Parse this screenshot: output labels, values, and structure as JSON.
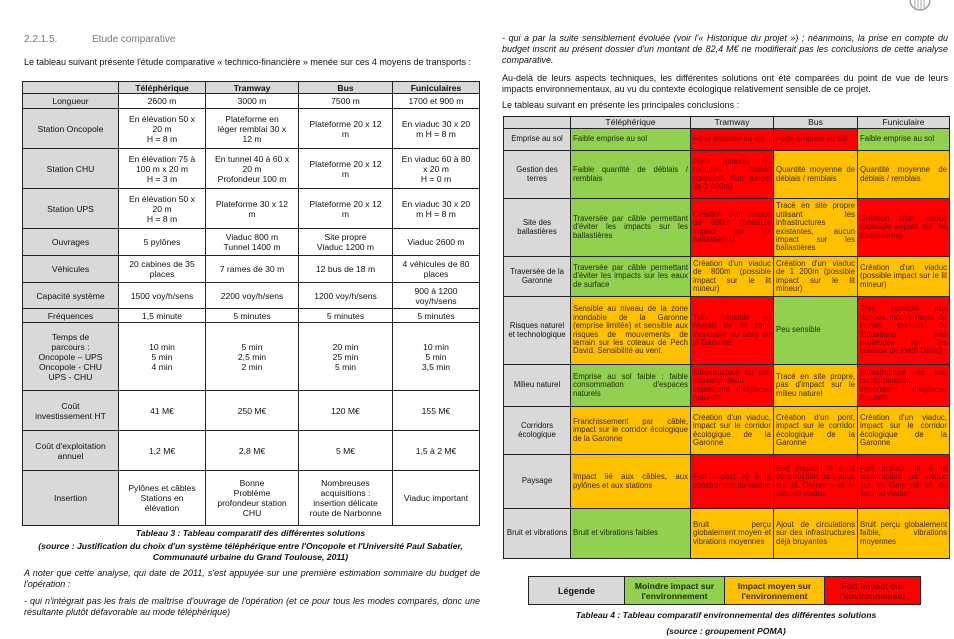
{
  "header": {
    "number": "2.2.1.5.",
    "title": "Etude comparative"
  },
  "left": {
    "intro": "Le tableau suivant présente l'étude comparative « technico-financière » menée sur ces 4 moyens de transports :",
    "caption": "Tableau 3 : Tableau comparatif des différentes solutions",
    "source": "(source : Justification du choix d'un système téléphérique entre l'Oncopole et l'Université Paul Sabatier, Communauté urbaine du Grand Toulouse, 2011)",
    "note": "A noter que cette analyse, qui date de 2011, s'est appuyée sur une première estimation sommaire du budget de l'opération :",
    "bullet": "- qui n'intégrait pas les frais de maîtrise d'ouvrage de l'opération (et ce pour tous les modes comparés, donc une résultante plutôt défavorable au mode téléphérique)"
  },
  "table3": {
    "header": [
      "",
      "Téléphérique",
      "Tramway",
      "Bus",
      "Funiculaires"
    ],
    "rows": [
      [
        [
          "Longueur"
        ],
        [
          "2600 m"
        ],
        [
          "3000 m"
        ],
        [
          "7500 m"
        ],
        [
          "1700 et 900 m"
        ]
      ],
      [
        [
          "Station Oncopole"
        ],
        [
          "En élévation 50 x",
          "20 m",
          "H = 8 m"
        ],
        [
          "Plateforme en",
          "léger remblai 30 x",
          "12 m"
        ],
        [
          "Plateforme 20 x 12",
          "m"
        ],
        [
          "En viaduc 30 x 20",
          "m H = 8 m"
        ]
      ],
      [
        [
          "Station CHU"
        ],
        [
          "En élévation 75 à",
          "100 m x 20 m",
          "H = 3 m"
        ],
        [
          "En tunnel 40 à 60 x",
          "20 m",
          "Profondeur 100 m"
        ],
        [
          "Plateforme 20 x 12",
          "m"
        ],
        [
          "En viaduc 60 à 80",
          "x 20 m",
          "H = 0 m"
        ]
      ],
      [
        [
          "Station UPS"
        ],
        [
          "En élévation 50 x",
          "20 m",
          "H = 8 m"
        ],
        [
          "Plateforme 30 x 12",
          "m"
        ],
        [
          "Plateforme 20 x 12",
          "m"
        ],
        [
          "En viaduc 30 x 20",
          "m H = 8 m"
        ]
      ],
      [
        [
          "Ouvrages"
        ],
        [
          "5 pylônes"
        ],
        [
          "Viaduc 800 m",
          "Tunnel 1400 m"
        ],
        [
          "Site propre",
          "Viaduc 1200 m"
        ],
        [
          "Viaduc 2600 m"
        ]
      ],
      [
        [
          "Véhicules"
        ],
        [
          "20 cabines de 35",
          "places"
        ],
        [
          "7 rames de 30 m"
        ],
        [
          "12 bus de 18 m"
        ],
        [
          "4 véhicules de 80",
          "places"
        ]
      ],
      [
        [
          "Capacité système"
        ],
        [
          "1500 voy/h/sens"
        ],
        [
          "2200 voy/h/sens"
        ],
        [
          "1200 voy/h/sens"
        ],
        [
          "900 à 1200",
          "voy/h/sens"
        ]
      ],
      [
        [
          "Fréquences"
        ],
        [
          "1,5 minute"
        ],
        [
          "5 minutes"
        ],
        [
          "5 minutes"
        ],
        [
          "5 minutes"
        ]
      ],
      [
        [
          "Temps de",
          "parcours :",
          "Oncopole – UPS",
          "Oncopole - CHU",
          "UPS - CHU"
        ],
        [
          "10 min",
          "5 min",
          "4 min"
        ],
        [
          "5 min",
          "2,5 min",
          "2 min"
        ],
        [
          "20 min",
          "25 min",
          "5 min"
        ],
        [
          "10 min",
          "5 min",
          "3,5 min"
        ]
      ],
      [
        [
          "Coût",
          "investissement HT"
        ],
        [
          "41 M€"
        ],
        [
          "250 M€"
        ],
        [
          "120 M€"
        ],
        [
          "155 M€"
        ]
      ],
      [
        [
          "Coût d'exploitation",
          "annuel"
        ],
        [
          "1,2 M€"
        ],
        [
          "2,8 M€"
        ],
        [
          "5 M€"
        ],
        [
          "1,5 à 2 M€"
        ]
      ],
      [
        [
          "Insertion"
        ],
        [
          "Pylônes et câbles",
          "Stations en",
          "élévation"
        ],
        [
          "Bonne",
          "Problème",
          "profondeur station",
          "CHU"
        ],
        [
          "Nombreuses",
          "acquisitions :",
          "insertion délicate",
          "route de Narbonne"
        ],
        [
          "Viaduc important"
        ]
      ]
    ]
  },
  "right": {
    "bullet": "- qui a par la suite sensiblement évoluée (voir l'« Historique du projet ») ; néanmoins, la prise en compte du budget inscrit au présent dossier d'un montant de 82,4 M€ ne modifierait pas les conclusions de cette analyse comparative.",
    "para": "Au-delà de leurs aspects techniques, les différentes solutions ont été comparées du point de vue de leurs impacts environnementaux, au vu du contexte écologique relativement sensible de ce projet.",
    "intro": "Le tableau suivant en présente les principales conclusions :",
    "caption": "Tableau 4 : Tableau comparatif environnemental des différentes solutions",
    "source": "(source : groupement POMA)"
  },
  "table4": {
    "header": [
      "",
      "Téléphérique",
      "Tramway",
      "Bus",
      "Funiculaire"
    ],
    "rows": [
      {
        "label": "Emprise au sol",
        "cells": [
          {
            "text": "Faible emprise au sol",
            "color": "#92d050",
            "text_color": "#1b2e05"
          },
          {
            "text": "Forte emprise au sol",
            "color": "#ff0000",
            "text_color": "#7a0000"
          },
          {
            "text": "Forte emprise au sol",
            "color": "#ff0000",
            "text_color": "#7a0000"
          },
          {
            "text": "Faible emprise au sol",
            "color": "#92d050",
            "text_color": "#1b2e05"
          }
        ]
      },
      {
        "label": "Gestion des terres",
        "cells": [
          {
            "text": "Faible quantité de déblais / remblais",
            "color": "#92d050",
            "text_color": "#1b2e05"
          },
          {
            "text": "Forte quantité de remblais / déblais (création d'un tunnel de 1 400m)",
            "color": "#ff0000",
            "text_color": "#7a0000"
          },
          {
            "text": "Quantité moyenne de déblais / remblais",
            "color": "#ffc000",
            "text_color": "#3d2a00"
          },
          {
            "text": "Quantité moyenne de déblais / remblais",
            "color": "#ffc000",
            "text_color": "#3d2a00"
          }
        ]
      },
      {
        "label": "Site des ballastières",
        "cells": [
          {
            "text": "Traversée par câble permettant d'éviter les impacts sur les ballastières",
            "color": "#92d050",
            "text_color": "#1b2e05"
          },
          {
            "text": "Création d'un viaduc de 800m (possible impact sur les ballastières)",
            "color": "#ff0000",
            "text_color": "#7a0000"
          },
          {
            "text": "Tracé en site propre utilisant les infrastructures existantes, aucun impact sur les ballastières",
            "color": "#ffc000",
            "text_color": "#3d2a00"
          },
          {
            "text": "Création d'un viaduc (possible impact sur les ballastières)",
            "color": "#ff0000",
            "text_color": "#7a0000"
          }
        ]
      },
      {
        "label": "Traversée de la Garonne",
        "cells": [
          {
            "text": "Traversée par câble permettant d'éviter les impacts sur les eaux de surface",
            "color": "#92d050",
            "text_color": "#1b2e05"
          },
          {
            "text": "Création d'un viaduc de 800m (possible impact sur le lit mineur)",
            "color": "#ffc000",
            "text_color": "#3d2a00"
          },
          {
            "text": "Création d'un viaduc de 1 200m (possible impact sur le lit mineur)",
            "color": "#ffc000",
            "text_color": "#3d2a00"
          },
          {
            "text": "Création d'un viaduc (possible impact sur le lit mineur)",
            "color": "#ffc000",
            "text_color": "#3d2a00"
          }
        ]
      },
      {
        "label": "Risques naturel et technologique",
        "cells": [
          {
            "text": "Sensible au niveau de la zone inondable de la Garonne (emprise limitée) et sensible aux risques de mouvements de terrain sur les coteaux de Pech David. Sensibilité au vent.",
            "color": "#ffc000",
            "text_color": "#3d2a00"
          },
          {
            "text": "Très sensible au niveau de la zone inondable au bord de la Garonne",
            "color": "#ff0000",
            "text_color": "#7a0000"
          },
          {
            "text": "Peu sensible",
            "color": "#92d050",
            "text_color": "#1b2e05"
          },
          {
            "text": "Très sensible aux risques mouvements de terrain (besoin de fondations très profondes sur les coteaux de Pech David)",
            "color": "#ff0000",
            "text_color": "#7a0000"
          }
        ]
      },
      {
        "label": "Milieu naturel",
        "cells": [
          {
            "text": "Emprise au sol faible : faible consommation d'espaces naturels",
            "color": "#92d050",
            "text_color": "#1b2e05"
          },
          {
            "text": "Infrastructure au sol, consommation importante d'espaces naturels",
            "color": "#ff0000",
            "text_color": "#7a0000"
          },
          {
            "text": "Tracé en site propre, pas d'impact sur le milieu naturel",
            "color": "#ffc000",
            "text_color": "#3d2a00"
          },
          {
            "text": "Infrastructure au sol, consommation importante d'espaces naturels",
            "color": "#ff0000",
            "text_color": "#7a0000"
          }
        ]
      },
      {
        "label": "Corridors écologique",
        "cells": [
          {
            "text": "Franchissement par câble, impact sur le corridor écologique de la Garonne",
            "color": "#ffc000",
            "text_color": "#3d2a00"
          },
          {
            "text": "Création d'un viaduc, impact sur le corridor écologique de la Garonne",
            "color": "#ffc000",
            "text_color": "#3d2a00"
          },
          {
            "text": "Création d'un pont, impact sur le corridor écologique de la Garonne",
            "color": "#ffc000",
            "text_color": "#3d2a00"
          },
          {
            "text": "Création d'un viaduc, impact sur le corridor écologique de la Garonne",
            "color": "#ffc000",
            "text_color": "#3d2a00"
          }
        ]
      },
      {
        "label": "Paysage",
        "cells": [
          {
            "text": "Impact lié aux câbles, aux pylônes et aux stations",
            "color": "#ffc000",
            "text_color": "#3d2a00"
          },
          {
            "text": "Fort impact lié à la construction du viaduc",
            "color": "#ff0000",
            "text_color": "#7a0000"
          },
          {
            "text": "Fort impact lié à la construction du viaduc sur la Garonne et le second viaduc",
            "color": "#ff0000",
            "text_color": "#7a0000"
          },
          {
            "text": "Fort impact lié à la construction du viaduc sur la Garonne et du second viaduc",
            "color": "#ff0000",
            "text_color": "#7a0000"
          }
        ]
      },
      {
        "label": "Bruit et vibrations",
        "cells": [
          {
            "text": "Bruit et vibrations faibles",
            "color": "#92d050",
            "text_color": "#1b2e05"
          },
          {
            "text": "Bruit perçu globalement moyen et vibrations moyennes",
            "color": "#ffc000",
            "text_color": "#3d2a00"
          },
          {
            "text": "Ajout de circulations sur des infrastructures déjà bruyantes",
            "color": "#ffc000",
            "text_color": "#3d2a00"
          },
          {
            "text": "Bruit perçu globalement faible, vibrations moyennes",
            "color": "#ffc000",
            "text_color": "#3d2a00"
          }
        ]
      }
    ],
    "legend": {
      "title": "Légende",
      "items": [
        {
          "text": "Moindre impact sur l'environnement",
          "color": "#92d050",
          "text_color": "#1b2e05"
        },
        {
          "text": "Impact moyen sur l'environnement",
          "color": "#ffc000",
          "text_color": "#3d2a00"
        },
        {
          "text": "Fort impact sur l'environnement",
          "color": "#ff0000",
          "text_color": "#7a0000"
        }
      ]
    }
  }
}
